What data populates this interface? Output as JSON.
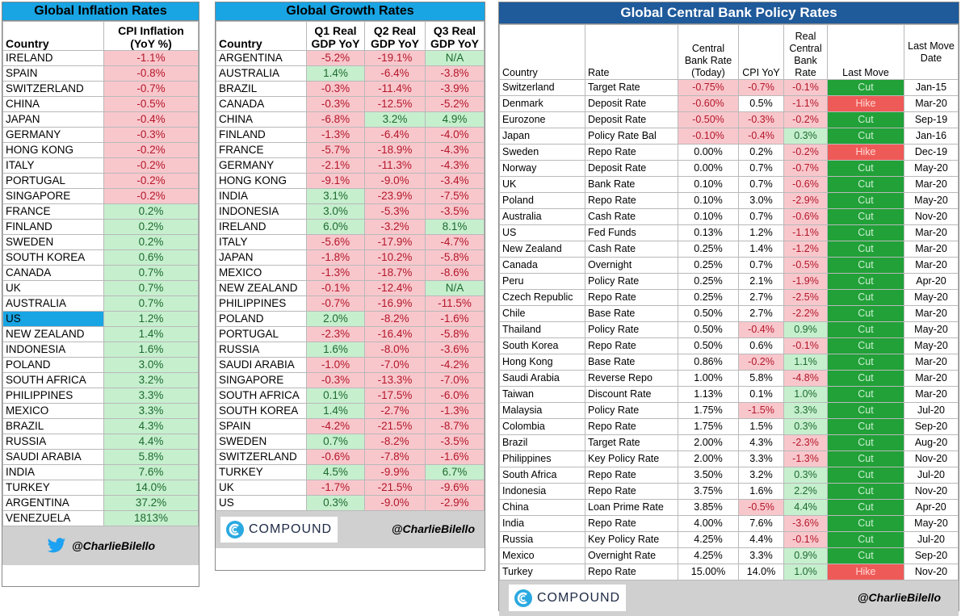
{
  "inflation": {
    "title": "Global Inflation Rates",
    "col_country": "Country",
    "col_cpi_1": "CPI Inflation",
    "col_cpi_2": "(YoY %)",
    "rows": [
      {
        "country": "IRELAND",
        "v": "-1.1%",
        "s": "neg"
      },
      {
        "country": "SPAIN",
        "v": "-0.8%",
        "s": "neg"
      },
      {
        "country": "SWITZERLAND",
        "v": "-0.7%",
        "s": "neg"
      },
      {
        "country": "CHINA",
        "v": "-0.5%",
        "s": "neg"
      },
      {
        "country": "JAPAN",
        "v": "-0.4%",
        "s": "neg"
      },
      {
        "country": "GERMANY",
        "v": "-0.3%",
        "s": "neg"
      },
      {
        "country": "HONG KONG",
        "v": "-0.2%",
        "s": "neg"
      },
      {
        "country": "ITALY",
        "v": "-0.2%",
        "s": "neg"
      },
      {
        "country": "PORTUGAL",
        "v": "-0.2%",
        "s": "neg"
      },
      {
        "country": "SINGAPORE",
        "v": "-0.2%",
        "s": "neg"
      },
      {
        "country": "FRANCE",
        "v": "0.2%",
        "s": "pos"
      },
      {
        "country": "FINLAND",
        "v": "0.2%",
        "s": "pos"
      },
      {
        "country": "SWEDEN",
        "v": "0.2%",
        "s": "pos"
      },
      {
        "country": "SOUTH KOREA",
        "v": "0.6%",
        "s": "pos"
      },
      {
        "country": "CANADA",
        "v": "0.7%",
        "s": "pos"
      },
      {
        "country": "UK",
        "v": "0.7%",
        "s": "pos"
      },
      {
        "country": "AUSTRALIA",
        "v": "0.7%",
        "s": "pos"
      },
      {
        "country": "US",
        "v": "1.2%",
        "s": "pos",
        "highlight": true
      },
      {
        "country": "NEW ZEALAND",
        "v": "1.4%",
        "s": "pos"
      },
      {
        "country": "INDONESIA",
        "v": "1.6%",
        "s": "pos"
      },
      {
        "country": "POLAND",
        "v": "3.0%",
        "s": "pos"
      },
      {
        "country": "SOUTH AFRICA",
        "v": "3.2%",
        "s": "pos"
      },
      {
        "country": "PHILIPPINES",
        "v": "3.3%",
        "s": "pos"
      },
      {
        "country": "MEXICO",
        "v": "3.3%",
        "s": "pos"
      },
      {
        "country": "BRAZIL",
        "v": "4.3%",
        "s": "pos"
      },
      {
        "country": "RUSSIA",
        "v": "4.4%",
        "s": "pos"
      },
      {
        "country": "SAUDI ARABIA",
        "v": "5.8%",
        "s": "pos"
      },
      {
        "country": "INDIA",
        "v": "7.6%",
        "s": "pos"
      },
      {
        "country": "TURKEY",
        "v": "14.0%",
        "s": "pos"
      },
      {
        "country": "ARGENTINA",
        "v": "37.2%",
        "s": "pos"
      },
      {
        "country": "VENEZUELA",
        "v": "1813%",
        "s": "pos"
      }
    ],
    "footer_handle": "@CharlieBilello",
    "footer_icon": "twitter-bird-icon"
  },
  "growth": {
    "title": "Global Growth Rates",
    "col_country": "Country",
    "col_q1_1": "Q1 Real",
    "col_q1_2": "GDP YoY",
    "col_q2_1": "Q2 Real",
    "col_q2_2": "GDP YoY",
    "col_q3_1": "Q3 Real",
    "col_q3_2": "GDP YoY",
    "rows": [
      {
        "country": "ARGENTINA",
        "q1": "-5.2%",
        "q1s": "neg",
        "q2": "-19.1%",
        "q2s": "neg",
        "q3": "N/A",
        "q3s": "pos"
      },
      {
        "country": "AUSTRALIA",
        "q1": "1.4%",
        "q1s": "pos",
        "q2": "-6.4%",
        "q2s": "neg",
        "q3": "-3.8%",
        "q3s": "neg"
      },
      {
        "country": "BRAZIL",
        "q1": "-0.3%",
        "q1s": "neg",
        "q2": "-11.4%",
        "q2s": "neg",
        "q3": "-3.9%",
        "q3s": "neg"
      },
      {
        "country": "CANADA",
        "q1": "-0.3%",
        "q1s": "neg",
        "q2": "-12.5%",
        "q2s": "neg",
        "q3": "-5.2%",
        "q3s": "neg"
      },
      {
        "country": "CHINA",
        "q1": "-6.8%",
        "q1s": "neg",
        "q2": "3.2%",
        "q2s": "pos",
        "q3": "4.9%",
        "q3s": "pos"
      },
      {
        "country": "FINLAND",
        "q1": "-1.3%",
        "q1s": "neg",
        "q2": "-6.4%",
        "q2s": "neg",
        "q3": "-4.0%",
        "q3s": "neg"
      },
      {
        "country": "FRANCE",
        "q1": "-5.7%",
        "q1s": "neg",
        "q2": "-18.9%",
        "q2s": "neg",
        "q3": "-4.3%",
        "q3s": "neg"
      },
      {
        "country": "GERMANY",
        "q1": "-2.1%",
        "q1s": "neg",
        "q2": "-11.3%",
        "q2s": "neg",
        "q3": "-4.3%",
        "q3s": "neg"
      },
      {
        "country": "HONG KONG",
        "q1": "-9.1%",
        "q1s": "neg",
        "q2": "-9.0%",
        "q2s": "neg",
        "q3": "-3.4%",
        "q3s": "neg"
      },
      {
        "country": "INDIA",
        "q1": "3.1%",
        "q1s": "pos",
        "q2": "-23.9%",
        "q2s": "neg",
        "q3": "-7.5%",
        "q3s": "neg"
      },
      {
        "country": "INDONESIA",
        "q1": "3.0%",
        "q1s": "pos",
        "q2": "-5.3%",
        "q2s": "neg",
        "q3": "-3.5%",
        "q3s": "neg"
      },
      {
        "country": "IRELAND",
        "q1": "6.0%",
        "q1s": "pos",
        "q2": "-3.2%",
        "q2s": "neg",
        "q3": "8.1%",
        "q3s": "pos"
      },
      {
        "country": "ITALY",
        "q1": "-5.6%",
        "q1s": "neg",
        "q2": "-17.9%",
        "q2s": "neg",
        "q3": "-4.7%",
        "q3s": "neg"
      },
      {
        "country": "JAPAN",
        "q1": "-1.8%",
        "q1s": "neg",
        "q2": "-10.2%",
        "q2s": "neg",
        "q3": "-5.8%",
        "q3s": "neg"
      },
      {
        "country": "MEXICO",
        "q1": "-1.3%",
        "q1s": "neg",
        "q2": "-18.7%",
        "q2s": "neg",
        "q3": "-8.6%",
        "q3s": "neg"
      },
      {
        "country": "NEW ZEALAND",
        "q1": "-0.1%",
        "q1s": "neg",
        "q2": "-12.4%",
        "q2s": "neg",
        "q3": "N/A",
        "q3s": "pos"
      },
      {
        "country": "PHILIPPINES",
        "q1": "-0.7%",
        "q1s": "neg",
        "q2": "-16.9%",
        "q2s": "neg",
        "q3": "-11.5%",
        "q3s": "neg"
      },
      {
        "country": "POLAND",
        "q1": "2.0%",
        "q1s": "pos",
        "q2": "-8.2%",
        "q2s": "neg",
        "q3": "-1.6%",
        "q3s": "neg"
      },
      {
        "country": "PORTUGAL",
        "q1": "-2.3%",
        "q1s": "neg",
        "q2": "-16.4%",
        "q2s": "neg",
        "q3": "-5.8%",
        "q3s": "neg"
      },
      {
        "country": "RUSSIA",
        "q1": "1.6%",
        "q1s": "pos",
        "q2": "-8.0%",
        "q2s": "neg",
        "q3": "-3.6%",
        "q3s": "neg"
      },
      {
        "country": "SAUDI ARABIA",
        "q1": "-1.0%",
        "q1s": "neg",
        "q2": "-7.0%",
        "q2s": "neg",
        "q3": "-4.2%",
        "q3s": "neg"
      },
      {
        "country": "SINGAPORE",
        "q1": "-0.3%",
        "q1s": "neg",
        "q2": "-13.3%",
        "q2s": "neg",
        "q3": "-7.0%",
        "q3s": "neg"
      },
      {
        "country": "SOUTH AFRICA",
        "q1": "0.1%",
        "q1s": "pos",
        "q2": "-17.5%",
        "q2s": "neg",
        "q3": "-6.0%",
        "q3s": "neg"
      },
      {
        "country": "SOUTH KOREA",
        "q1": "1.4%",
        "q1s": "pos",
        "q2": "-2.7%",
        "q2s": "neg",
        "q3": "-1.3%",
        "q3s": "neg"
      },
      {
        "country": "SPAIN",
        "q1": "-4.2%",
        "q1s": "neg",
        "q2": "-21.5%",
        "q2s": "neg",
        "q3": "-8.7%",
        "q3s": "neg"
      },
      {
        "country": "SWEDEN",
        "q1": "0.7%",
        "q1s": "pos",
        "q2": "-8.2%",
        "q2s": "neg",
        "q3": "-3.5%",
        "q3s": "neg"
      },
      {
        "country": "SWITZERLAND",
        "q1": "-0.6%",
        "q1s": "neg",
        "q2": "-7.8%",
        "q2s": "neg",
        "q3": "-1.6%",
        "q3s": "neg"
      },
      {
        "country": "TURKEY",
        "q1": "4.5%",
        "q1s": "pos",
        "q2": "-9.9%",
        "q2s": "neg",
        "q3": "6.7%",
        "q3s": "pos"
      },
      {
        "country": "UK",
        "q1": "-1.7%",
        "q1s": "neg",
        "q2": "-21.5%",
        "q2s": "neg",
        "q3": "-9.6%",
        "q3s": "neg"
      },
      {
        "country": "US",
        "q1": "0.3%",
        "q1s": "pos",
        "q2": "-9.0%",
        "q2s": "neg",
        "q3": "-2.9%",
        "q3s": "neg"
      }
    ],
    "logo_text": "COMPOUND",
    "footer_handle": "@CharlieBilello"
  },
  "policy": {
    "title": "Global Central Bank Policy Rates",
    "col_country": "Country",
    "col_rate": "Rate",
    "col_cbr_1": "Central",
    "col_cbr_2": "Bank Rate",
    "col_cbr_3": "(Today)",
    "col_cpi": "CPI YoY",
    "col_real_1": "Real",
    "col_real_2": "Central",
    "col_real_3": "Bank",
    "col_real_4": "Rate",
    "col_move": "Last Move",
    "col_date_1": "Last Move",
    "col_date_2": "Date",
    "rows": [
      {
        "country": "Switzerland",
        "rate": "Target Rate",
        "cbr": "-0.75%",
        "cbrs": "neg",
        "cpi": "-0.7%",
        "cpis": "neg",
        "real": "-0.1%",
        "reals": "neg",
        "move": "Cut",
        "date": "Jan-15"
      },
      {
        "country": "Denmark",
        "rate": "Deposit Rate",
        "cbr": "-0.60%",
        "cbrs": "neg",
        "cpi": "0.5%",
        "cpis": "zero",
        "real": "-1.1%",
        "reals": "neg",
        "move": "Hike",
        "date": "Mar-20"
      },
      {
        "country": "Eurozone",
        "rate": "Deposit Rate",
        "cbr": "-0.50%",
        "cbrs": "neg",
        "cpi": "-0.3%",
        "cpis": "neg",
        "real": "-0.2%",
        "reals": "neg",
        "move": "Cut",
        "date": "Sep-19"
      },
      {
        "country": "Japan",
        "rate": "Policy Rate Bal",
        "cbr": "-0.10%",
        "cbrs": "neg",
        "cpi": "-0.4%",
        "cpis": "neg",
        "real": "0.3%",
        "reals": "pos",
        "move": "Cut",
        "date": "Jan-16"
      },
      {
        "country": "Sweden",
        "rate": "Repo Rate",
        "cbr": "0.00%",
        "cbrs": "zero",
        "cpi": "0.2%",
        "cpis": "zero",
        "real": "-0.2%",
        "reals": "neg",
        "move": "Hike",
        "date": "Dec-19"
      },
      {
        "country": "Norway",
        "rate": "Deposit Rate",
        "cbr": "0.00%",
        "cbrs": "zero",
        "cpi": "0.7%",
        "cpis": "zero",
        "real": "-0.7%",
        "reals": "neg",
        "move": "Cut",
        "date": "May-20"
      },
      {
        "country": "UK",
        "rate": "Bank Rate",
        "cbr": "0.10%",
        "cbrs": "zero",
        "cpi": "0.7%",
        "cpis": "zero",
        "real": "-0.6%",
        "reals": "neg",
        "move": "Cut",
        "date": "Mar-20"
      },
      {
        "country": "Poland",
        "rate": "Repo Rate",
        "cbr": "0.10%",
        "cbrs": "zero",
        "cpi": "3.0%",
        "cpis": "zero",
        "real": "-2.9%",
        "reals": "neg",
        "move": "Cut",
        "date": "May-20"
      },
      {
        "country": "Australia",
        "rate": "Cash Rate",
        "cbr": "0.10%",
        "cbrs": "zero",
        "cpi": "0.7%",
        "cpis": "zero",
        "real": "-0.6%",
        "reals": "neg",
        "move": "Cut",
        "date": "Nov-20"
      },
      {
        "country": "US",
        "rate": "Fed Funds",
        "cbr": "0.13%",
        "cbrs": "zero",
        "cpi": "1.2%",
        "cpis": "zero",
        "real": "-1.1%",
        "reals": "neg",
        "move": "Cut",
        "date": "Mar-20"
      },
      {
        "country": "New Zealand",
        "rate": "Cash Rate",
        "cbr": "0.25%",
        "cbrs": "zero",
        "cpi": "1.4%",
        "cpis": "zero",
        "real": "-1.2%",
        "reals": "neg",
        "move": "Cut",
        "date": "Mar-20"
      },
      {
        "country": "Canada",
        "rate": "Overnight",
        "cbr": "0.25%",
        "cbrs": "zero",
        "cpi": "0.7%",
        "cpis": "zero",
        "real": "-0.5%",
        "reals": "neg",
        "move": "Cut",
        "date": "Mar-20"
      },
      {
        "country": "Peru",
        "rate": "Policy Rate",
        "cbr": "0.25%",
        "cbrs": "zero",
        "cpi": "2.1%",
        "cpis": "zero",
        "real": "-1.9%",
        "reals": "neg",
        "move": "Cut",
        "date": "Apr-20"
      },
      {
        "country": "Czech Republic",
        "rate": "Repo Rate",
        "cbr": "0.25%",
        "cbrs": "zero",
        "cpi": "2.7%",
        "cpis": "zero",
        "real": "-2.5%",
        "reals": "neg",
        "move": "Cut",
        "date": "May-20"
      },
      {
        "country": "Chile",
        "rate": "Base Rate",
        "cbr": "0.50%",
        "cbrs": "zero",
        "cpi": "2.7%",
        "cpis": "zero",
        "real": "-2.2%",
        "reals": "neg",
        "move": "Cut",
        "date": "Mar-20"
      },
      {
        "country": "Thailand",
        "rate": "Policy Rate",
        "cbr": "0.50%",
        "cbrs": "zero",
        "cpi": "-0.4%",
        "cpis": "neg",
        "real": "0.9%",
        "reals": "pos",
        "move": "Cut",
        "date": "May-20"
      },
      {
        "country": "South Korea",
        "rate": "Repo Rate",
        "cbr": "0.50%",
        "cbrs": "zero",
        "cpi": "0.6%",
        "cpis": "zero",
        "real": "-0.1%",
        "reals": "neg",
        "move": "Cut",
        "date": "May-20"
      },
      {
        "country": "Hong Kong",
        "rate": "Base Rate",
        "cbr": "0.86%",
        "cbrs": "zero",
        "cpi": "-0.2%",
        "cpis": "neg",
        "real": "1.1%",
        "reals": "pos",
        "move": "Cut",
        "date": "Mar-20"
      },
      {
        "country": "Saudi Arabia",
        "rate": "Reverse Repo",
        "cbr": "1.00%",
        "cbrs": "zero",
        "cpi": "5.8%",
        "cpis": "zero",
        "real": "-4.8%",
        "reals": "neg",
        "move": "Cut",
        "date": "Mar-20"
      },
      {
        "country": "Taiwan",
        "rate": "Discount Rate",
        "cbr": "1.13%",
        "cbrs": "zero",
        "cpi": "0.1%",
        "cpis": "zero",
        "real": "1.0%",
        "reals": "pos",
        "move": "Cut",
        "date": "Mar-20"
      },
      {
        "country": "Malaysia",
        "rate": "Policy Rate",
        "cbr": "1.75%",
        "cbrs": "zero",
        "cpi": "-1.5%",
        "cpis": "neg",
        "real": "3.3%",
        "reals": "pos",
        "move": "Cut",
        "date": "Jul-20"
      },
      {
        "country": "Colombia",
        "rate": "Repo Rate",
        "cbr": "1.75%",
        "cbrs": "zero",
        "cpi": "1.5%",
        "cpis": "zero",
        "real": "0.3%",
        "reals": "pos",
        "move": "Cut",
        "date": "Sep-20"
      },
      {
        "country": "Brazil",
        "rate": "Target Rate",
        "cbr": "2.00%",
        "cbrs": "zero",
        "cpi": "4.3%",
        "cpis": "zero",
        "real": "-2.3%",
        "reals": "neg",
        "move": "Cut",
        "date": "Aug-20"
      },
      {
        "country": "Philippines",
        "rate": "Key Policy Rate",
        "cbr": "2.00%",
        "cbrs": "zero",
        "cpi": "3.3%",
        "cpis": "zero",
        "real": "-1.3%",
        "reals": "neg",
        "move": "Cut",
        "date": "Nov-20"
      },
      {
        "country": "South Africa",
        "rate": "Repo Rate",
        "cbr": "3.50%",
        "cbrs": "zero",
        "cpi": "3.2%",
        "cpis": "zero",
        "real": "0.3%",
        "reals": "pos",
        "move": "Cut",
        "date": "Jul-20"
      },
      {
        "country": "Indonesia",
        "rate": "Repo Rate",
        "cbr": "3.75%",
        "cbrs": "zero",
        "cpi": "1.6%",
        "cpis": "zero",
        "real": "2.2%",
        "reals": "pos",
        "move": "Cut",
        "date": "Nov-20"
      },
      {
        "country": "China",
        "rate": "Loan Prime Rate",
        "cbr": "3.85%",
        "cbrs": "zero",
        "cpi": "-0.5%",
        "cpis": "neg",
        "real": "4.4%",
        "reals": "pos",
        "move": "Cut",
        "date": "Apr-20"
      },
      {
        "country": "India",
        "rate": "Repo Rate",
        "cbr": "4.00%",
        "cbrs": "zero",
        "cpi": "7.6%",
        "cpis": "zero",
        "real": "-3.6%",
        "reals": "neg",
        "move": "Cut",
        "date": "May-20"
      },
      {
        "country": "Russia",
        "rate": "Key Policy Rate",
        "cbr": "4.25%",
        "cbrs": "zero",
        "cpi": "4.4%",
        "cpis": "zero",
        "real": "-0.1%",
        "reals": "neg",
        "move": "Cut",
        "date": "Jul-20"
      },
      {
        "country": "Mexico",
        "rate": "Overnight Rate",
        "cbr": "4.25%",
        "cbrs": "zero",
        "cpi": "3.3%",
        "cpis": "zero",
        "real": "0.9%",
        "reals": "pos",
        "move": "Cut",
        "date": "Sep-20"
      },
      {
        "country": "Turkey",
        "rate": "Repo Rate",
        "cbr": "15.00%",
        "cbrs": "zero",
        "cpi": "14.0%",
        "cpis": "zero",
        "real": "1.0%",
        "reals": "pos",
        "move": "Hike",
        "date": "Nov-20"
      }
    ],
    "logo_text": "COMPOUND",
    "footer_handle": "@CharlieBilello"
  }
}
